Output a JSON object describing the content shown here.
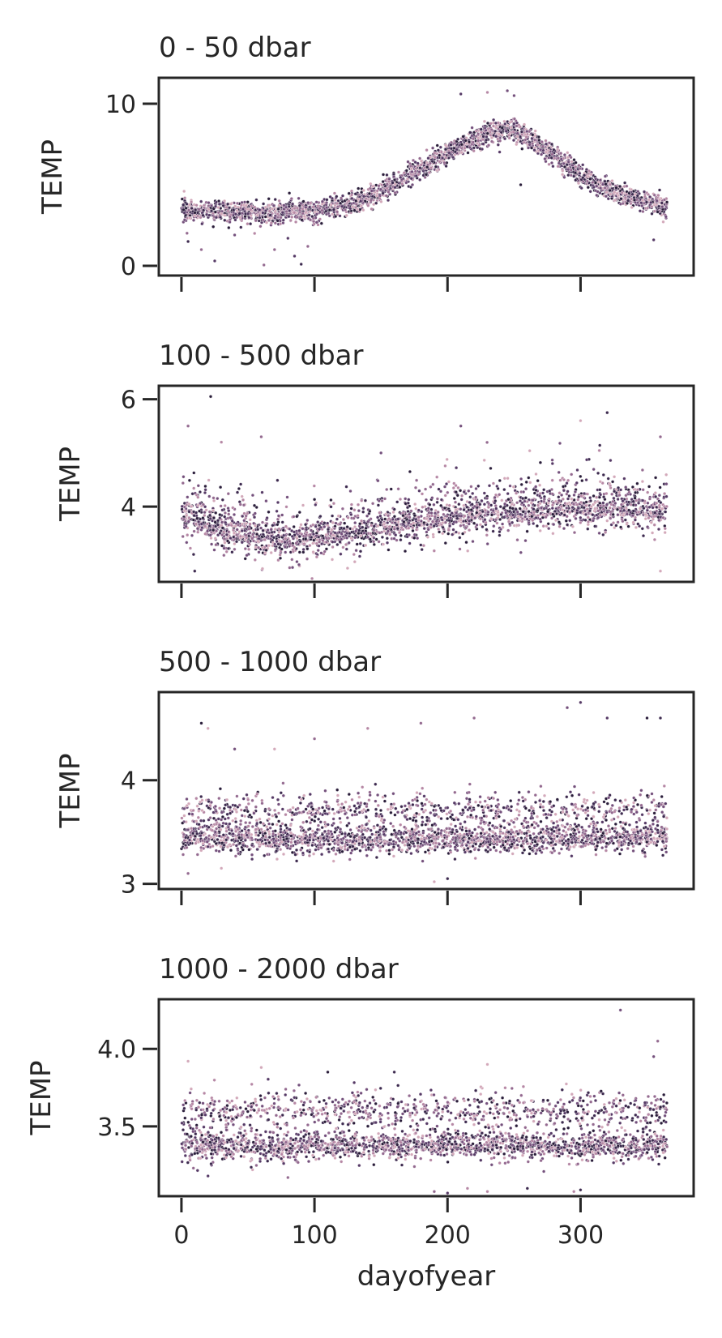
{
  "chart_data": [
    {
      "type": "scatter",
      "title": "0 - 50 dbar",
      "xlabel": "",
      "ylabel": "TEMP",
      "xlim": [
        -17,
        385
      ],
      "ylim": [
        -0.6,
        11.6
      ],
      "xticks": [
        0,
        100,
        200,
        300
      ],
      "xtick_labels_visible": false,
      "yticks": [
        0,
        10
      ],
      "ytick_labels": [
        "0",
        "10"
      ],
      "pattern": "seasonal",
      "approx_points": 2600,
      "trend": [
        [
          0,
          3.4
        ],
        [
          60,
          3.3
        ],
        [
          100,
          3.4
        ],
        [
          130,
          3.8
        ],
        [
          160,
          5.0
        ],
        [
          200,
          7.0
        ],
        [
          230,
          8.2
        ],
        [
          250,
          8.4
        ],
        [
          270,
          7.4
        ],
        [
          300,
          5.6
        ],
        [
          330,
          4.4
        ],
        [
          365,
          3.6
        ]
      ],
      "spread": 0.6,
      "outliers": [
        [
          2,
          4.6
        ],
        [
          5,
          1.5
        ],
        [
          15,
          1.0
        ],
        [
          25,
          0.3
        ],
        [
          40,
          1.9
        ],
        [
          55,
          2.0
        ],
        [
          62,
          0.05
        ],
        [
          70,
          1.0
        ],
        [
          80,
          1.7
        ],
        [
          85,
          0.6
        ],
        [
          90,
          0.1
        ],
        [
          95,
          1.2
        ],
        [
          210,
          10.6
        ],
        [
          230,
          10.7
        ],
        [
          245,
          10.8
        ],
        [
          250,
          10.5
        ],
        [
          255,
          5.0
        ],
        [
          355,
          1.6
        ]
      ]
    },
    {
      "type": "scatter",
      "title": "100 - 500 dbar",
      "xlabel": "",
      "ylabel": "TEMP",
      "xlim": [
        -17,
        385
      ],
      "ylim": [
        2.6,
        6.25
      ],
      "xticks": [
        0,
        100,
        200,
        300
      ],
      "xtick_labels_visible": false,
      "yticks": [
        4,
        6
      ],
      "ytick_labels": [
        "4",
        "6"
      ],
      "pattern": "rising",
      "approx_points": 2600,
      "trend": [
        [
          0,
          3.75
        ],
        [
          30,
          3.45
        ],
        [
          60,
          3.3
        ],
        [
          100,
          3.3
        ],
        [
          150,
          3.5
        ],
        [
          200,
          3.7
        ],
        [
          250,
          3.8
        ],
        [
          300,
          3.85
        ],
        [
          365,
          3.8
        ]
      ],
      "spread": 0.38,
      "outliers": [
        [
          5,
          5.5
        ],
        [
          22,
          6.05
        ],
        [
          10,
          2.8
        ],
        [
          30,
          5.2
        ],
        [
          60,
          5.3
        ],
        [
          150,
          5.0
        ],
        [
          210,
          5.5
        ],
        [
          300,
          5.6
        ],
        [
          320,
          5.75
        ],
        [
          360,
          2.8
        ],
        [
          360,
          5.3
        ]
      ]
    },
    {
      "type": "scatter",
      "title": "500 - 1000 dbar",
      "xlabel": "",
      "ylabel": "TEMP",
      "xlim": [
        -17,
        385
      ],
      "ylim": [
        2.95,
        4.85
      ],
      "xticks": [
        0,
        100,
        200,
        300
      ],
      "xtick_labels_visible": false,
      "yticks": [
        3,
        4
      ],
      "ytick_labels": [
        "3",
        "4"
      ],
      "pattern": "bimodal",
      "approx_points": 2600,
      "trend": [
        [
          0,
          3.45
        ],
        [
          100,
          3.42
        ],
        [
          200,
          3.43
        ],
        [
          300,
          3.44
        ],
        [
          365,
          3.45
        ]
      ],
      "spread": 0.12,
      "upper_band": 3.7,
      "outliers": [
        [
          15,
          4.55
        ],
        [
          20,
          4.5
        ],
        [
          40,
          4.3
        ],
        [
          70,
          4.3
        ],
        [
          100,
          4.4
        ],
        [
          140,
          4.5
        ],
        [
          180,
          4.55
        ],
        [
          190,
          3.02
        ],
        [
          200,
          3.05
        ],
        [
          220,
          4.6
        ],
        [
          290,
          4.7
        ],
        [
          300,
          4.75
        ],
        [
          320,
          4.6
        ],
        [
          350,
          4.6
        ],
        [
          360,
          4.6
        ],
        [
          5,
          3.1
        ],
        [
          30,
          3.15
        ]
      ]
    },
    {
      "type": "scatter",
      "title": "1000 - 2000 dbar",
      "xlabel": "dayofyear",
      "ylabel": "TEMP",
      "xlim": [
        -17,
        385
      ],
      "ylim": [
        3.05,
        4.32
      ],
      "xticks": [
        0,
        100,
        200,
        300
      ],
      "xtick_labels": [
        "0",
        "100",
        "200",
        "300"
      ],
      "xtick_labels_visible": true,
      "yticks": [
        3.5,
        4.0
      ],
      "ytick_labels": [
        "3.5",
        "4.0"
      ],
      "pattern": "bimodal",
      "approx_points": 2600,
      "trend": [
        [
          0,
          3.38
        ],
        [
          100,
          3.37
        ],
        [
          200,
          3.38
        ],
        [
          300,
          3.37
        ],
        [
          365,
          3.38
        ]
      ],
      "spread": 0.08,
      "upper_band": 3.6,
      "outliers": [
        [
          5,
          3.92
        ],
        [
          60,
          3.88
        ],
        [
          110,
          3.85
        ],
        [
          160,
          3.85
        ],
        [
          230,
          3.9
        ],
        [
          330,
          4.25
        ],
        [
          358,
          4.05
        ],
        [
          355,
          3.95
        ],
        [
          190,
          3.08
        ],
        [
          200,
          3.07
        ],
        [
          215,
          3.1
        ],
        [
          230,
          3.08
        ],
        [
          260,
          3.1
        ],
        [
          295,
          3.08
        ],
        [
          300,
          3.09
        ],
        [
          20,
          3.18
        ],
        [
          80,
          3.17
        ]
      ]
    }
  ]
}
